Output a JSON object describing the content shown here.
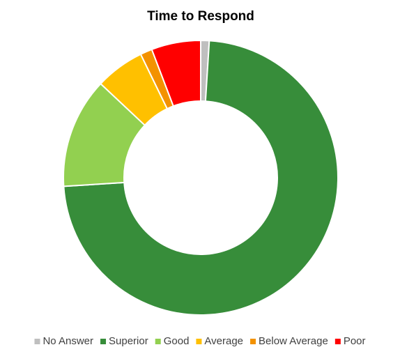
{
  "chart_data": {
    "type": "donut",
    "title": "Time to Respond",
    "categories": [
      "No Answer",
      "Superior",
      "Good",
      "Average",
      "Below Average",
      "Poor"
    ],
    "values": [
      1,
      73,
      13,
      5.8,
      1.4,
      5.8
    ],
    "colors": [
      "#bfbfbf",
      "#378d3a",
      "#92d050",
      "#ffc000",
      "#f39200",
      "#ff0000"
    ],
    "legend": "bottom"
  }
}
